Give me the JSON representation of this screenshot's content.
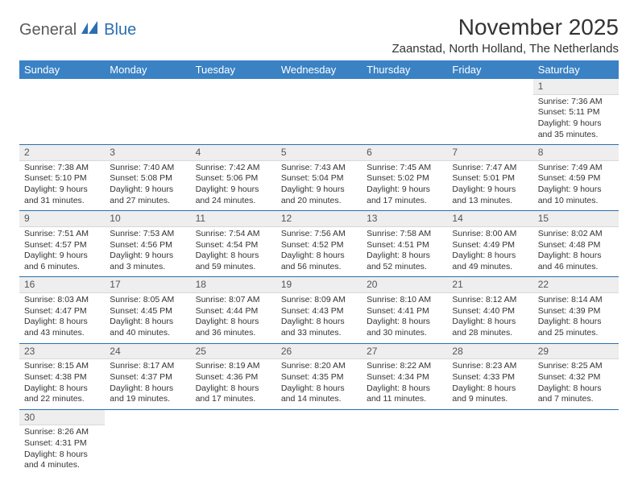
{
  "logo": {
    "part1": "General",
    "part2": "Blue"
  },
  "title": "November 2025",
  "location": "Zaanstad, North Holland, The Netherlands",
  "day_headers": [
    "Sunday",
    "Monday",
    "Tuesday",
    "Wednesday",
    "Thursday",
    "Friday",
    "Saturday"
  ],
  "colors": {
    "header_bg": "#3a82c4",
    "header_fg": "#ffffff",
    "rule": "#2b6fb0",
    "lead_bg": "#eeeeee",
    "text": "#333333"
  },
  "weeks": [
    [
      null,
      null,
      null,
      null,
      null,
      null,
      {
        "n": "1",
        "sr": "Sunrise: 7:36 AM",
        "ss": "Sunset: 5:11 PM",
        "d1": "Daylight: 9 hours",
        "d2": "and 35 minutes."
      }
    ],
    [
      {
        "n": "2",
        "sr": "Sunrise: 7:38 AM",
        "ss": "Sunset: 5:10 PM",
        "d1": "Daylight: 9 hours",
        "d2": "and 31 minutes."
      },
      {
        "n": "3",
        "sr": "Sunrise: 7:40 AM",
        "ss": "Sunset: 5:08 PM",
        "d1": "Daylight: 9 hours",
        "d2": "and 27 minutes."
      },
      {
        "n": "4",
        "sr": "Sunrise: 7:42 AM",
        "ss": "Sunset: 5:06 PM",
        "d1": "Daylight: 9 hours",
        "d2": "and 24 minutes."
      },
      {
        "n": "5",
        "sr": "Sunrise: 7:43 AM",
        "ss": "Sunset: 5:04 PM",
        "d1": "Daylight: 9 hours",
        "d2": "and 20 minutes."
      },
      {
        "n": "6",
        "sr": "Sunrise: 7:45 AM",
        "ss": "Sunset: 5:02 PM",
        "d1": "Daylight: 9 hours",
        "d2": "and 17 minutes."
      },
      {
        "n": "7",
        "sr": "Sunrise: 7:47 AM",
        "ss": "Sunset: 5:01 PM",
        "d1": "Daylight: 9 hours",
        "d2": "and 13 minutes."
      },
      {
        "n": "8",
        "sr": "Sunrise: 7:49 AM",
        "ss": "Sunset: 4:59 PM",
        "d1": "Daylight: 9 hours",
        "d2": "and 10 minutes."
      }
    ],
    [
      {
        "n": "9",
        "sr": "Sunrise: 7:51 AM",
        "ss": "Sunset: 4:57 PM",
        "d1": "Daylight: 9 hours",
        "d2": "and 6 minutes."
      },
      {
        "n": "10",
        "sr": "Sunrise: 7:53 AM",
        "ss": "Sunset: 4:56 PM",
        "d1": "Daylight: 9 hours",
        "d2": "and 3 minutes."
      },
      {
        "n": "11",
        "sr": "Sunrise: 7:54 AM",
        "ss": "Sunset: 4:54 PM",
        "d1": "Daylight: 8 hours",
        "d2": "and 59 minutes."
      },
      {
        "n": "12",
        "sr": "Sunrise: 7:56 AM",
        "ss": "Sunset: 4:52 PM",
        "d1": "Daylight: 8 hours",
        "d2": "and 56 minutes."
      },
      {
        "n": "13",
        "sr": "Sunrise: 7:58 AM",
        "ss": "Sunset: 4:51 PM",
        "d1": "Daylight: 8 hours",
        "d2": "and 52 minutes."
      },
      {
        "n": "14",
        "sr": "Sunrise: 8:00 AM",
        "ss": "Sunset: 4:49 PM",
        "d1": "Daylight: 8 hours",
        "d2": "and 49 minutes."
      },
      {
        "n": "15",
        "sr": "Sunrise: 8:02 AM",
        "ss": "Sunset: 4:48 PM",
        "d1": "Daylight: 8 hours",
        "d2": "and 46 minutes."
      }
    ],
    [
      {
        "n": "16",
        "sr": "Sunrise: 8:03 AM",
        "ss": "Sunset: 4:47 PM",
        "d1": "Daylight: 8 hours",
        "d2": "and 43 minutes."
      },
      {
        "n": "17",
        "sr": "Sunrise: 8:05 AM",
        "ss": "Sunset: 4:45 PM",
        "d1": "Daylight: 8 hours",
        "d2": "and 40 minutes."
      },
      {
        "n": "18",
        "sr": "Sunrise: 8:07 AM",
        "ss": "Sunset: 4:44 PM",
        "d1": "Daylight: 8 hours",
        "d2": "and 36 minutes."
      },
      {
        "n": "19",
        "sr": "Sunrise: 8:09 AM",
        "ss": "Sunset: 4:43 PM",
        "d1": "Daylight: 8 hours",
        "d2": "and 33 minutes."
      },
      {
        "n": "20",
        "sr": "Sunrise: 8:10 AM",
        "ss": "Sunset: 4:41 PM",
        "d1": "Daylight: 8 hours",
        "d2": "and 30 minutes."
      },
      {
        "n": "21",
        "sr": "Sunrise: 8:12 AM",
        "ss": "Sunset: 4:40 PM",
        "d1": "Daylight: 8 hours",
        "d2": "and 28 minutes."
      },
      {
        "n": "22",
        "sr": "Sunrise: 8:14 AM",
        "ss": "Sunset: 4:39 PM",
        "d1": "Daylight: 8 hours",
        "d2": "and 25 minutes."
      }
    ],
    [
      {
        "n": "23",
        "sr": "Sunrise: 8:15 AM",
        "ss": "Sunset: 4:38 PM",
        "d1": "Daylight: 8 hours",
        "d2": "and 22 minutes."
      },
      {
        "n": "24",
        "sr": "Sunrise: 8:17 AM",
        "ss": "Sunset: 4:37 PM",
        "d1": "Daylight: 8 hours",
        "d2": "and 19 minutes."
      },
      {
        "n": "25",
        "sr": "Sunrise: 8:19 AM",
        "ss": "Sunset: 4:36 PM",
        "d1": "Daylight: 8 hours",
        "d2": "and 17 minutes."
      },
      {
        "n": "26",
        "sr": "Sunrise: 8:20 AM",
        "ss": "Sunset: 4:35 PM",
        "d1": "Daylight: 8 hours",
        "d2": "and 14 minutes."
      },
      {
        "n": "27",
        "sr": "Sunrise: 8:22 AM",
        "ss": "Sunset: 4:34 PM",
        "d1": "Daylight: 8 hours",
        "d2": "and 11 minutes."
      },
      {
        "n": "28",
        "sr": "Sunrise: 8:23 AM",
        "ss": "Sunset: 4:33 PM",
        "d1": "Daylight: 8 hours",
        "d2": "and 9 minutes."
      },
      {
        "n": "29",
        "sr": "Sunrise: 8:25 AM",
        "ss": "Sunset: 4:32 PM",
        "d1": "Daylight: 8 hours",
        "d2": "and 7 minutes."
      }
    ],
    [
      {
        "n": "30",
        "sr": "Sunrise: 8:26 AM",
        "ss": "Sunset: 4:31 PM",
        "d1": "Daylight: 8 hours",
        "d2": "and 4 minutes."
      },
      null,
      null,
      null,
      null,
      null,
      null
    ]
  ]
}
